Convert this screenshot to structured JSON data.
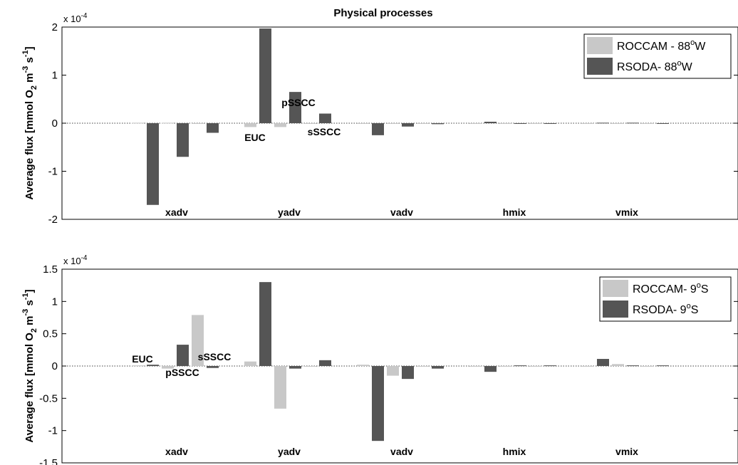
{
  "colors": {
    "light": "#c8c8c8",
    "dark": "#555555",
    "axis": "#000000"
  },
  "chart_data": [
    {
      "type": "bar",
      "title": "Physical processes",
      "ylabel": "Average flux [mmol O2 m-3 s-1]",
      "ylabel_parts": {
        "pre": "Average flux [mmol O",
        "sub": "2",
        "mid1": " m",
        "sup1": "-3",
        "mid2": " s",
        "sup2": "-1",
        "post": "]"
      },
      "scale_base": "x 10",
      "scale_exp": "-4",
      "ylim": [
        -2,
        2
      ],
      "yticks": [
        "-2",
        "-1",
        "0",
        "1",
        "2"
      ],
      "ytick_values": [
        -2,
        -1,
        0,
        1,
        2
      ],
      "categories": [
        "xadv",
        "yadv",
        "vadv",
        "hmix",
        "vmix"
      ],
      "legend": [
        {
          "text": "ROCCAM - 88",
          "sup": "o",
          "post": "W",
          "color": "#c8c8c8"
        },
        {
          "text": "RSODA- 88",
          "sup": "o",
          "post": "W",
          "color": "#555555"
        }
      ],
      "legend_position": "top-right",
      "sub_labels": [
        "EUC",
        "pSSCC",
        "sSSCC"
      ],
      "series": [
        {
          "name": "ROCCAM - 88oW",
          "values": [
            [
              0.01,
              0.01,
              0.0
            ],
            [
              -0.08,
              -0.08,
              -0.01
            ],
            [
              -0.01,
              -0.01,
              -0.01
            ],
            [
              -0.01,
              -0.01,
              -0.01
            ],
            [
              -0.01,
              -0.01,
              -0.01
            ]
          ]
        },
        {
          "name": "RSODA- 88oW",
          "values": [
            [
              -1.7,
              -0.7,
              -0.2
            ],
            [
              1.97,
              0.65,
              0.2
            ],
            [
              -0.25,
              -0.07,
              -0.02
            ],
            [
              0.03,
              -0.01,
              -0.01
            ],
            [
              0.01,
              0.01,
              -0.01
            ]
          ]
        }
      ]
    },
    {
      "type": "bar",
      "title": "",
      "ylabel": "Average flux [mmol O2 m-3 s-1]",
      "ylabel_parts": {
        "pre": "Average flux [mmol O",
        "sub": "2",
        "mid1": " m",
        "sup1": "-3",
        "mid2": " s",
        "sup2": "-1",
        "post": "]"
      },
      "scale_base": "x 10",
      "scale_exp": "-4",
      "ylim": [
        -1.5,
        1.5
      ],
      "yticks": [
        "-1.5",
        "-1",
        "-0.5",
        "0",
        "0.5",
        "1",
        "1.5"
      ],
      "ytick_values": [
        -1.5,
        -1,
        -0.5,
        0,
        0.5,
        1,
        1.5
      ],
      "categories": [
        "xadv",
        "yadv",
        "vadv",
        "hmix",
        "vmix"
      ],
      "legend": [
        {
          "text": "ROCCAM- 9",
          "sup": "o",
          "post": "S",
          "color": "#c8c8c8"
        },
        {
          "text": "RSODA- 9",
          "sup": "o",
          "post": "S",
          "color": "#555555"
        }
      ],
      "legend_position": "top-right",
      "sub_labels": [
        "EUC",
        "pSSCC",
        "sSSCC"
      ],
      "series": [
        {
          "name": "ROCCAM- 9oS",
          "values": [
            [
              0.01,
              -0.04,
              0.79
            ],
            [
              0.07,
              -0.66,
              0.0
            ],
            [
              0.02,
              -0.15,
              0.0
            ],
            [
              -0.01,
              -0.01,
              0.0
            ],
            [
              -0.01,
              0.03,
              0.0
            ]
          ]
        },
        {
          "name": "RSODA- 9oS",
          "values": [
            [
              0.02,
              0.33,
              -0.03
            ],
            [
              1.3,
              -0.04,
              0.09
            ],
            [
              -1.16,
              -0.2,
              -0.04
            ],
            [
              -0.09,
              0.01,
              0.01
            ],
            [
              0.11,
              0.01,
              0.01
            ]
          ]
        }
      ]
    }
  ]
}
